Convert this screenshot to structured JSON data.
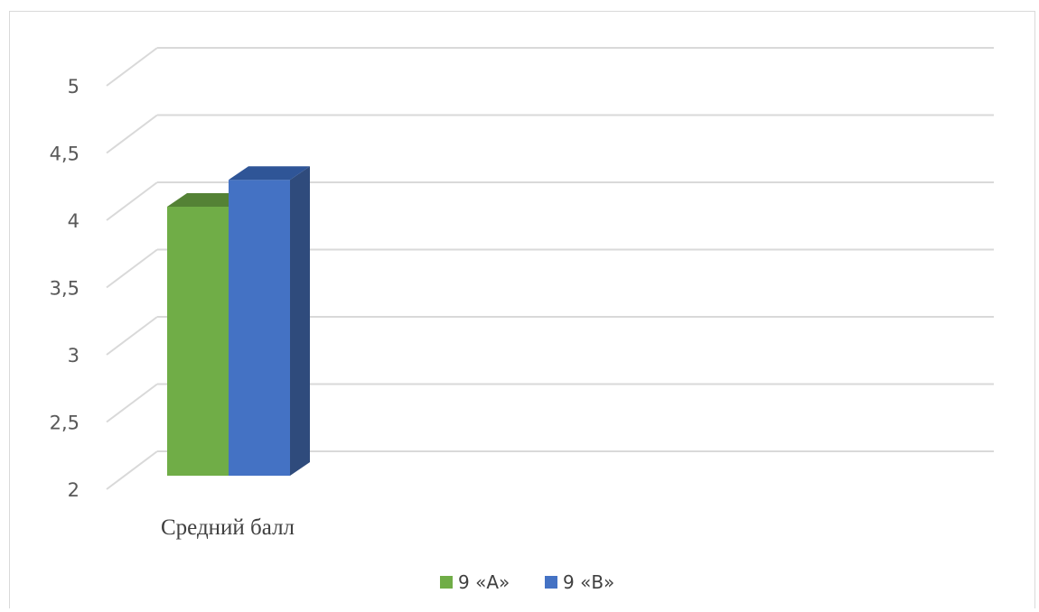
{
  "chart_data": {
    "type": "bar",
    "title": "",
    "xlabel": "",
    "ylabel": "",
    "categories": [
      "Средний балл"
    ],
    "series": [
      {
        "name": "9 «А»",
        "values": [
          4.0
        ],
        "color": "#70ad47",
        "side_color": "#507e32",
        "top_color": "#548235"
      },
      {
        "name": "9 «В»",
        "values": [
          4.2
        ],
        "color": "#4472c4",
        "side_color": "#2f4b7c",
        "top_color": "#2f5597"
      }
    ],
    "ylim": [
      2,
      5
    ],
    "yticks": [
      "2",
      "2,5",
      "3",
      "3,5",
      "4",
      "4,5",
      "5"
    ],
    "ytick_values": [
      2,
      2.5,
      3,
      3.5,
      4,
      4.5,
      5
    ],
    "grid": true,
    "legend_position": "bottom",
    "style": "3d-column"
  }
}
